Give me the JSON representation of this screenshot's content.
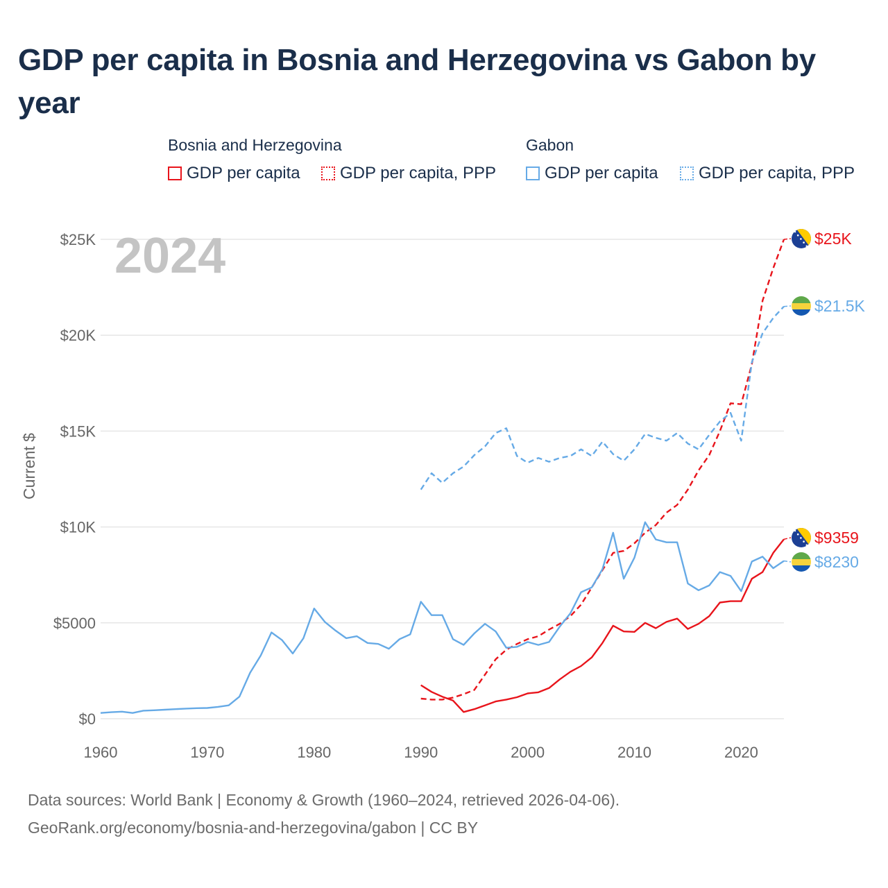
{
  "title": "GDP per capita in Bosnia and Herzegovina vs Gabon by year",
  "legend": {
    "groups": [
      {
        "name": "Bosnia and Herzegovina",
        "items": [
          "GDP per capita",
          "GDP per capita, PPP"
        ]
      },
      {
        "name": "Gabon",
        "items": [
          "GDP per capita",
          "GDP per capita, PPP"
        ]
      }
    ]
  },
  "year_watermark": "2024",
  "footer": {
    "line1": "Data sources: World Bank | Economy & Growth (1960–2024, retrieved 2026-04-06).",
    "line2": "GeoRank.org/economy/bosnia-and-herzegovina/gabon | CC BY"
  },
  "colors": {
    "bih": "#e8141b",
    "gabon": "#66aae6",
    "grid": "#e6e6e6",
    "axis_text": "#666666"
  },
  "chart_data": {
    "type": "line",
    "title": "GDP per capita in Bosnia and Herzegovina vs Gabon by year",
    "ylabel": "Current $",
    "xlabel": "",
    "xlim": [
      1960,
      2024
    ],
    "ylim": [
      0,
      25000
    ],
    "x_ticks": [
      1960,
      1970,
      1980,
      1990,
      2000,
      2010,
      2020
    ],
    "x_tick_labels": [
      "1960",
      "1970",
      "1980",
      "1990",
      "2000",
      "2010",
      "2020"
    ],
    "y_ticks": [
      0,
      5000,
      10000,
      15000,
      20000,
      25000
    ],
    "y_tick_labels": [
      "$0",
      "$5000",
      "$10K",
      "$15K",
      "$20K",
      "$25K"
    ],
    "end_labels": [
      "$25K",
      "$21.5K",
      "$9359",
      "$8230"
    ],
    "series": [
      {
        "name": "Bosnia and Herzegovina GDP per capita",
        "country": "bih",
        "style": "solid",
        "end_label": "$9359",
        "x": [
          1990,
          1991,
          1992,
          1993,
          1994,
          1995,
          1996,
          1997,
          1998,
          1999,
          2000,
          2001,
          2002,
          2003,
          2004,
          2005,
          2006,
          2007,
          2008,
          2009,
          2010,
          2011,
          2012,
          2013,
          2014,
          2015,
          2016,
          2017,
          2018,
          2019,
          2020,
          2021,
          2022,
          2023,
          2024
        ],
        "y": [
          1750,
          1400,
          1150,
          950,
          350,
          500,
          700,
          900,
          1000,
          1120,
          1320,
          1380,
          1600,
          2050,
          2450,
          2750,
          3200,
          3950,
          4850,
          4550,
          4530,
          5000,
          4720,
          5050,
          5220,
          4680,
          4950,
          5350,
          6060,
          6130,
          6130,
          7300,
          7650,
          8650,
          9359
        ]
      },
      {
        "name": "Bosnia and Herzegovina GDP per capita, PPP",
        "country": "bih",
        "style": "dashed",
        "end_label": "$25K",
        "x": [
          1990,
          1991,
          1992,
          1993,
          1994,
          1995,
          1996,
          1997,
          1998,
          1999,
          2000,
          2001,
          2002,
          2003,
          2004,
          2005,
          2006,
          2007,
          2008,
          2009,
          2010,
          2011,
          2012,
          2013,
          2014,
          2015,
          2016,
          2017,
          2018,
          2019,
          2020,
          2021,
          2022,
          2023,
          2024
        ],
        "y": [
          1050,
          1000,
          1000,
          1100,
          1280,
          1500,
          2300,
          3100,
          3600,
          3900,
          4150,
          4300,
          4650,
          4950,
          5350,
          5950,
          6850,
          7750,
          8650,
          8750,
          9150,
          9700,
          10100,
          10750,
          11150,
          11950,
          12950,
          13750,
          15000,
          16450,
          16400,
          18500,
          21800,
          23500,
          25000
        ]
      },
      {
        "name": "Gabon GDP per capita",
        "country": "gabon",
        "style": "solid",
        "end_label": "$8230",
        "x": [
          1960,
          1961,
          1962,
          1963,
          1964,
          1965,
          1966,
          1967,
          1968,
          1969,
          1970,
          1971,
          1972,
          1973,
          1974,
          1975,
          1976,
          1977,
          1978,
          1979,
          1980,
          1981,
          1982,
          1983,
          1984,
          1985,
          1986,
          1987,
          1988,
          1989,
          1990,
          1991,
          1992,
          1993,
          1994,
          1995,
          1996,
          1997,
          1998,
          1999,
          2000,
          2001,
          2002,
          2003,
          2004,
          2005,
          2006,
          2007,
          2008,
          2009,
          2010,
          2011,
          2012,
          2013,
          2014,
          2015,
          2016,
          2017,
          2018,
          2019,
          2020,
          2021,
          2022,
          2023,
          2024
        ],
        "y": [
          300,
          340,
          370,
          300,
          420,
          440,
          470,
          500,
          530,
          550,
          560,
          620,
          700,
          1150,
          2400,
          3300,
          4500,
          4100,
          3400,
          4200,
          5750,
          5050,
          4600,
          4200,
          4300,
          3950,
          3900,
          3650,
          4150,
          4400,
          6100,
          5400,
          5400,
          4150,
          3850,
          4450,
          4950,
          4550,
          3700,
          3750,
          4000,
          3850,
          4000,
          4800,
          5500,
          6600,
          6850,
          7800,
          9700,
          7300,
          8400,
          10250,
          9350,
          9200,
          9200,
          7050,
          6700,
          6950,
          7650,
          7450,
          6650,
          8200,
          8450,
          7850,
          8230
        ]
      },
      {
        "name": "Gabon GDP per capita, PPP",
        "country": "gabon",
        "style": "dashed",
        "end_label": "$21.5K",
        "x": [
          1990,
          1991,
          1992,
          1993,
          1994,
          1995,
          1996,
          1997,
          1998,
          1999,
          2000,
          2001,
          2002,
          2003,
          2004,
          2005,
          2006,
          2007,
          2008,
          2009,
          2010,
          2011,
          2012,
          2013,
          2014,
          2015,
          2016,
          2017,
          2018,
          2019,
          2020,
          2021,
          2022,
          2023,
          2024
        ],
        "y": [
          11950,
          12800,
          12300,
          12800,
          13150,
          13750,
          14200,
          14900,
          15150,
          13700,
          13350,
          13600,
          13400,
          13600,
          13700,
          14050,
          13700,
          14450,
          13800,
          13450,
          14050,
          14850,
          14650,
          14500,
          14900,
          14350,
          14050,
          14800,
          15500,
          15950,
          14500,
          18600,
          20100,
          20900,
          21500
        ]
      }
    ]
  }
}
